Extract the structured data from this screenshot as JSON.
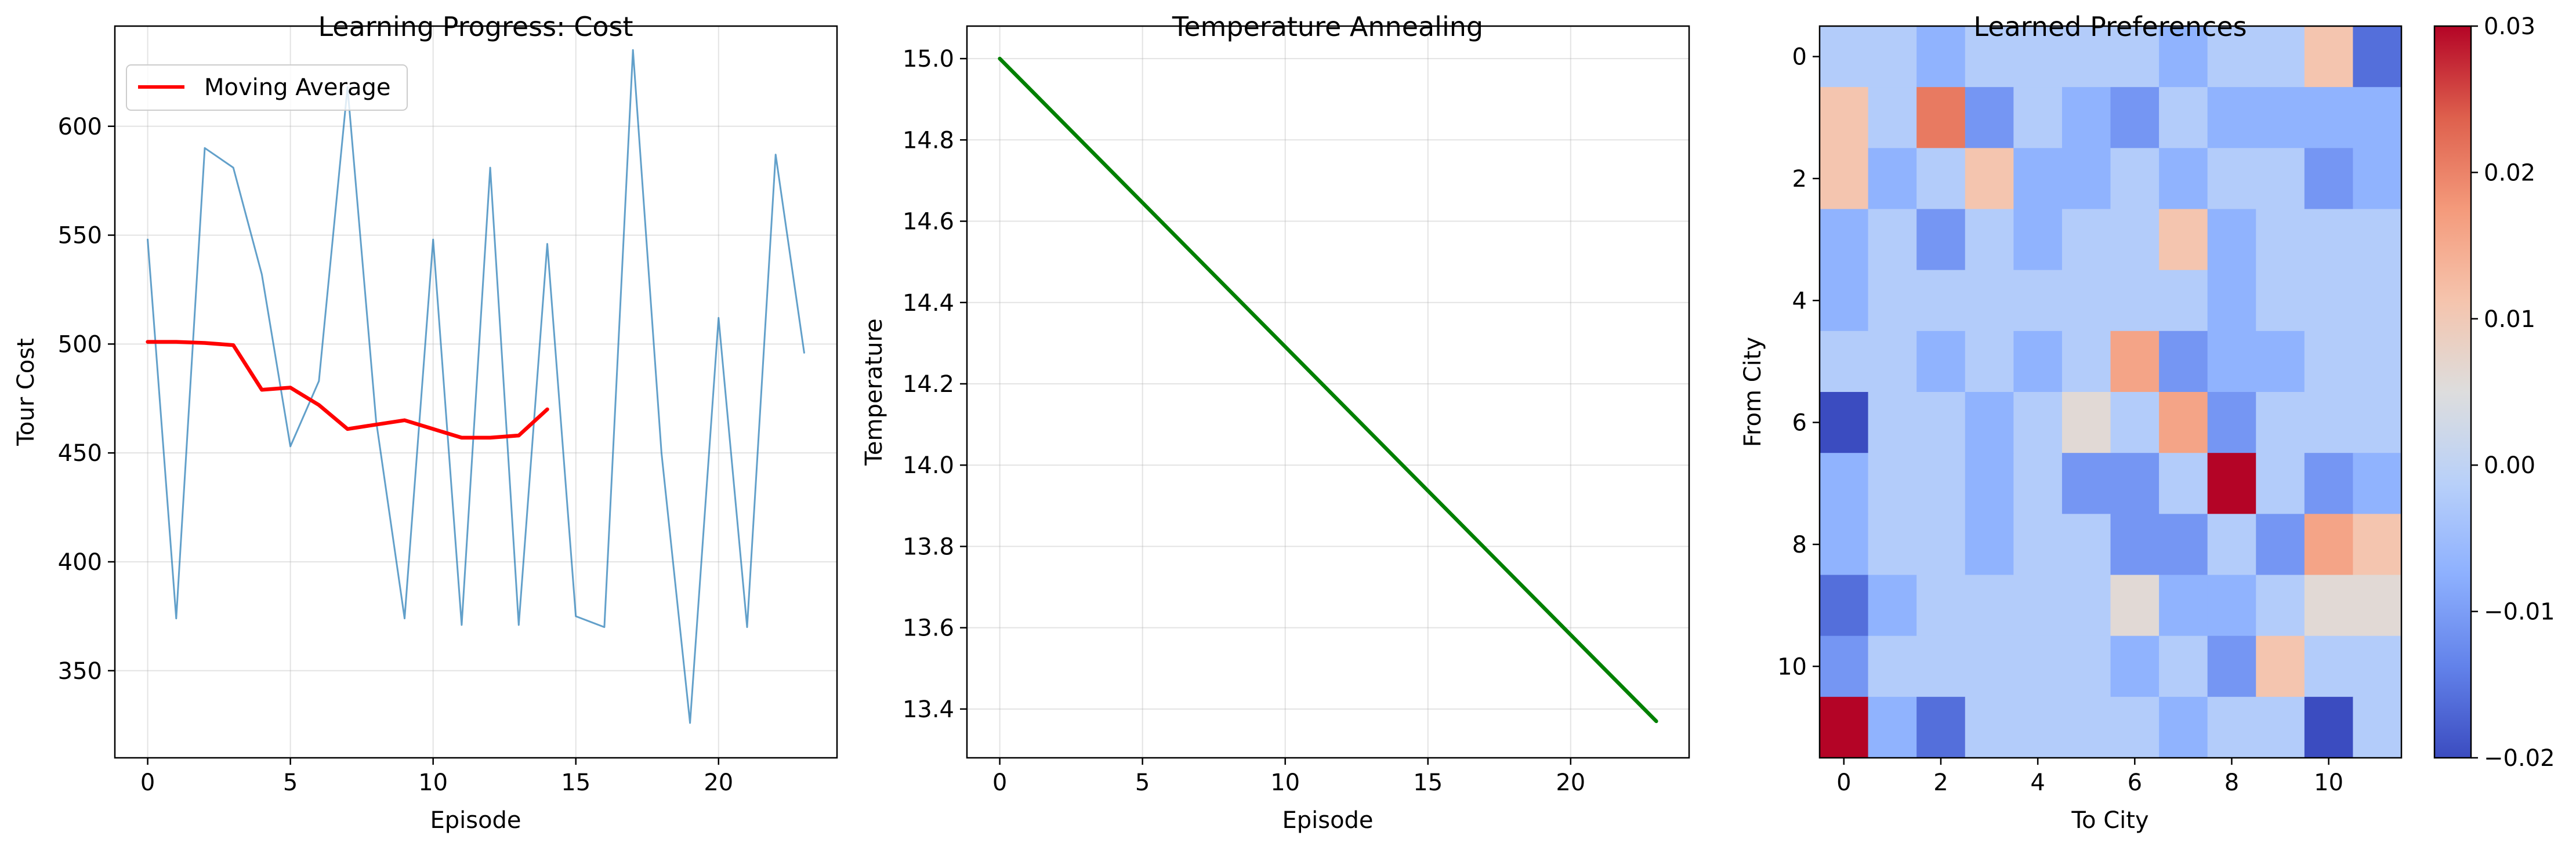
{
  "chart_data": [
    {
      "type": "line",
      "title": "Learning Progress: Cost",
      "xlabel": "Episode",
      "ylabel": "Tour Cost",
      "xlim": [
        -1.15,
        24.15
      ],
      "ylim": [
        310,
        646
      ],
      "xticks": [
        0,
        5,
        10,
        15,
        20
      ],
      "yticks": [
        350,
        400,
        450,
        500,
        550,
        600
      ],
      "grid": true,
      "legend": "top-left",
      "series": [
        {
          "name": "",
          "color": "#1f77b4",
          "x": [
            0,
            1,
            2,
            3,
            4,
            5,
            6,
            7,
            8,
            9,
            10,
            11,
            12,
            13,
            14,
            15,
            16,
            17,
            18,
            19,
            20,
            21,
            22,
            23
          ],
          "values": [
            548,
            374,
            590,
            581,
            532,
            453,
            483,
            618,
            465,
            374,
            548,
            371,
            581,
            371,
            546,
            375,
            370,
            635,
            450,
            326,
            512,
            370,
            587,
            496
          ]
        },
        {
          "name": "Moving Average",
          "color": "#ff0000",
          "x": [
            0,
            1,
            2,
            3,
            4,
            5,
            6,
            7,
            8,
            9,
            10,
            11,
            12,
            13,
            14
          ],
          "values": [
            501,
            501,
            500.5,
            499.5,
            479,
            480,
            472,
            461,
            463,
            465,
            461,
            457,
            457,
            458,
            470
          ]
        }
      ]
    },
    {
      "type": "line",
      "title": "Temperature Annealing",
      "xlabel": "Episode",
      "ylabel": "Temperature",
      "xlim": [
        -1.15,
        24.15
      ],
      "ylim": [
        13.28,
        15.08
      ],
      "xticks": [
        0,
        5,
        10,
        15,
        20
      ],
      "yticks": [
        13.4,
        13.6,
        13.8,
        14.0,
        14.2,
        14.4,
        14.6,
        14.8,
        15.0
      ],
      "grid": true,
      "series": [
        {
          "name": "",
          "color": "#008000",
          "x": [
            0,
            23
          ],
          "values": [
            15.0,
            13.37
          ]
        }
      ]
    },
    {
      "type": "heatmap",
      "title": "Learned Preferences",
      "xlabel": "To City",
      "ylabel": "From City",
      "xticks": [
        0,
        2,
        4,
        6,
        8,
        10
      ],
      "yticks": [
        0,
        2,
        4,
        6,
        8,
        10
      ],
      "colormap": "coolwarm",
      "vmin": -0.02,
      "vmax": 0.03,
      "colorbar_ticks": [
        "0.03",
        "0.02",
        "0.01",
        "0.00",
        "−0.01",
        "−0.02"
      ],
      "colorbar_tick_values": [
        0.03,
        0.02,
        0.01,
        0.0,
        -0.01,
        -0.02
      ],
      "values": [
        [
          -0.002,
          -0.002,
          -0.007,
          -0.002,
          -0.002,
          -0.002,
          -0.002,
          -0.007,
          -0.002,
          -0.002,
          0.011,
          -0.016
        ],
        [
          0.011,
          -0.002,
          0.021,
          -0.011,
          -0.002,
          -0.007,
          -0.011,
          -0.002,
          -0.007,
          -0.007,
          -0.007,
          -0.007
        ],
        [
          0.011,
          -0.007,
          -0.002,
          0.011,
          -0.007,
          -0.007,
          -0.002,
          -0.007,
          -0.002,
          -0.002,
          -0.011,
          -0.007
        ],
        [
          -0.007,
          -0.002,
          -0.011,
          -0.002,
          -0.007,
          -0.002,
          -0.002,
          0.011,
          -0.007,
          -0.002,
          -0.002,
          -0.002
        ],
        [
          -0.007,
          -0.002,
          -0.002,
          -0.002,
          -0.002,
          -0.002,
          -0.002,
          -0.002,
          -0.007,
          -0.002,
          -0.002,
          -0.002
        ],
        [
          -0.002,
          -0.002,
          -0.007,
          -0.002,
          -0.007,
          -0.002,
          0.016,
          -0.011,
          -0.007,
          -0.007,
          -0.002,
          -0.002
        ],
        [
          -0.02,
          -0.002,
          -0.002,
          -0.007,
          -0.002,
          0.006,
          -0.002,
          0.016,
          -0.011,
          -0.002,
          -0.002,
          -0.002
        ],
        [
          -0.007,
          -0.002,
          -0.002,
          -0.007,
          -0.002,
          -0.011,
          -0.011,
          -0.002,
          0.03,
          -0.002,
          -0.011,
          -0.007
        ],
        [
          -0.007,
          -0.002,
          -0.002,
          -0.007,
          -0.002,
          -0.002,
          -0.011,
          -0.011,
          -0.002,
          -0.011,
          0.016,
          0.011
        ],
        [
          -0.016,
          -0.007,
          -0.002,
          -0.002,
          -0.002,
          -0.002,
          0.006,
          -0.007,
          -0.007,
          -0.002,
          0.006,
          0.006
        ],
        [
          -0.011,
          -0.002,
          -0.002,
          -0.002,
          -0.002,
          -0.002,
          -0.007,
          -0.002,
          -0.011,
          0.011,
          -0.002,
          -0.002
        ],
        [
          0.03,
          -0.007,
          -0.016,
          -0.002,
          -0.002,
          -0.002,
          -0.002,
          -0.007,
          -0.002,
          -0.002,
          -0.02,
          -0.002
        ]
      ]
    }
  ]
}
